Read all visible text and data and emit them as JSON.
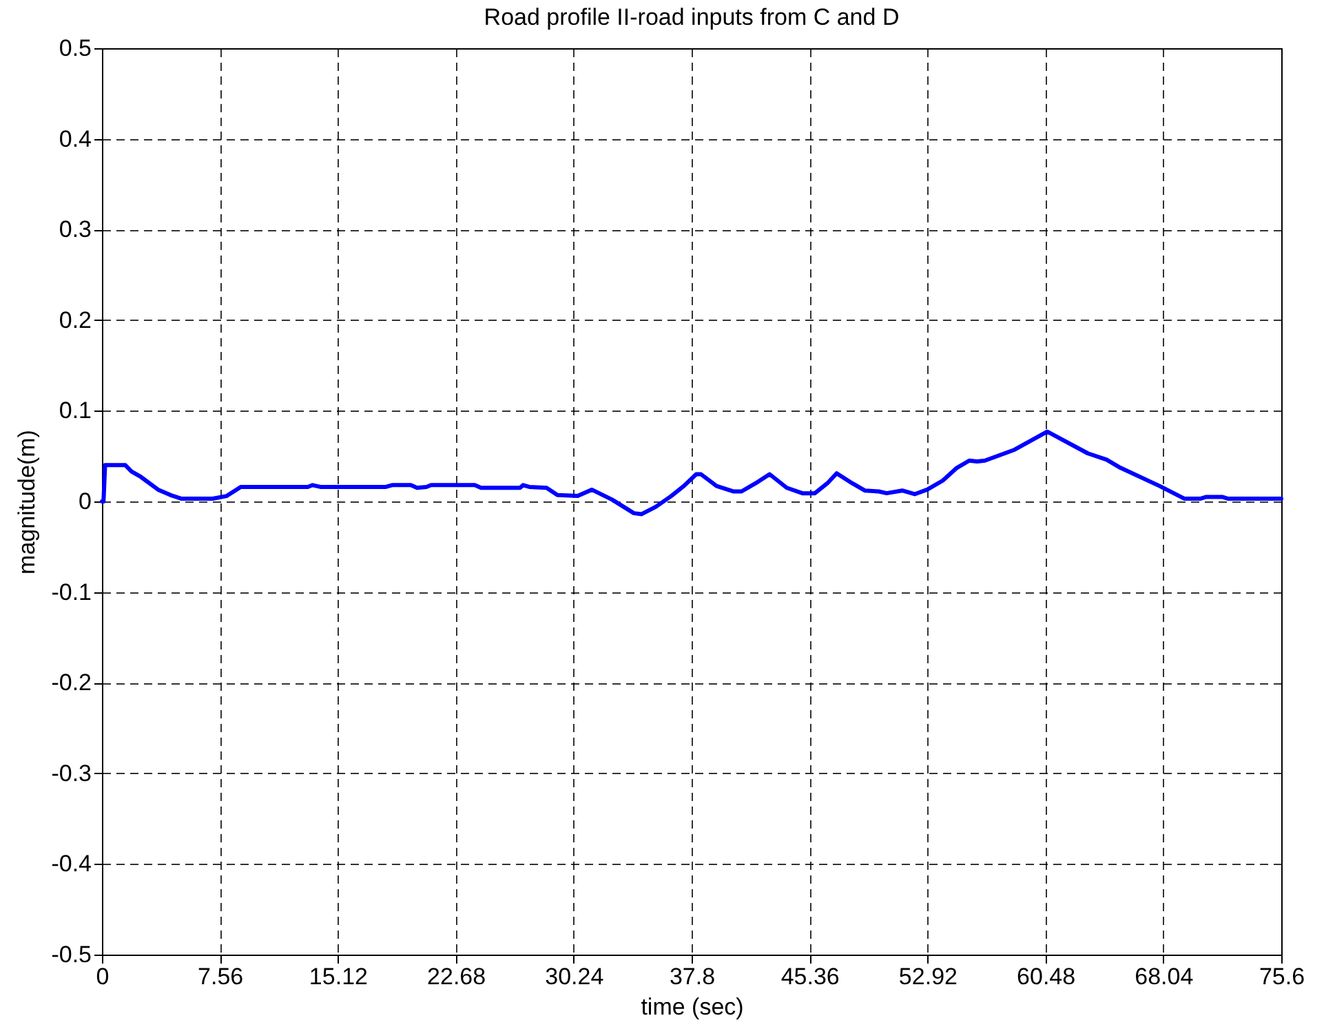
{
  "chart_data": {
    "type": "line",
    "title": "Road profile II-road inputs from C and D",
    "xlabel": "time (sec)",
    "ylabel": "magnitude(m)",
    "xlim": [
      0,
      75.6
    ],
    "xticks": [
      {
        "value": 0,
        "label": "0"
      },
      {
        "value": 7.56,
        "label": "7.56"
      },
      {
        "value": 15.12,
        "label": "15.12"
      },
      {
        "value": 22.68,
        "label": "22.68"
      },
      {
        "value": 30.24,
        "label": "30.24"
      },
      {
        "value": 37.8,
        "label": "37.8"
      },
      {
        "value": 45.36,
        "label": "45.36"
      },
      {
        "value": 52.92,
        "label": "52.92"
      },
      {
        "value": 60.48,
        "label": "60.48"
      },
      {
        "value": 68.04,
        "label": "68.04"
      },
      {
        "value": 75.6,
        "label": "75.6"
      }
    ],
    "ylim": [
      -0.5,
      0.5
    ],
    "yticks": [
      {
        "value": -0.5,
        "label": "-0.5"
      },
      {
        "value": -0.4,
        "label": "-0.4"
      },
      {
        "value": -0.3,
        "label": "-0.3"
      },
      {
        "value": -0.2,
        "label": "-0.2"
      },
      {
        "value": -0.1,
        "label": "-0.1"
      },
      {
        "value": 0,
        "label": "0"
      },
      {
        "value": 0.1,
        "label": "0.1"
      },
      {
        "value": 0.2,
        "label": "0.2"
      },
      {
        "value": 0.3,
        "label": "0.3"
      },
      {
        "value": 0.4,
        "label": "0.4"
      },
      {
        "value": 0.5,
        "label": "0.5"
      }
    ],
    "grid": true,
    "line_style": "solid",
    "series": [
      {
        "color": "#0000ff",
        "x": [
          0,
          0.1,
          0.2,
          0.4,
          1.5,
          1.9,
          2.5,
          3.6,
          4.4,
          5.1,
          7.1,
          8.0,
          8.9,
          13.2,
          13.5,
          14.0,
          18.2,
          18.6,
          19.8,
          20.2,
          20.8,
          21.1,
          23.9,
          24.3,
          26.8,
          27.0,
          27.4,
          28.5,
          29.2,
          30.5,
          31.4,
          32.7,
          34.1,
          34.6,
          35.5,
          36.5,
          37.3,
          38.1,
          38.4,
          39.4,
          40.5,
          41.0,
          41.9,
          42.8,
          43.9,
          44.9,
          45.7,
          46.5,
          47.1,
          48.1,
          48.9,
          49.8,
          50.3,
          51.3,
          52.1,
          52.9,
          53.9,
          54.8,
          55.6,
          56.1,
          56.6,
          58.5,
          60.6,
          63.2,
          64.4,
          65.3,
          67.8,
          69.4,
          70.4,
          70.8,
          71.8,
          72.2,
          75.6
        ],
        "values": [
          0,
          0,
          0.04,
          0.04,
          0.04,
          0.033,
          0.027,
          0.013,
          0.007,
          0.003,
          0.003,
          0.006,
          0.016,
          0.016,
          0.018,
          0.016,
          0.016,
          0.018,
          0.018,
          0.015,
          0.016,
          0.018,
          0.018,
          0.015,
          0.015,
          0.018,
          0.016,
          0.015,
          0.007,
          0.006,
          0.013,
          0.002,
          -0.013,
          -0.014,
          -0.006,
          0.006,
          0.017,
          0.03,
          0.03,
          0.017,
          0.011,
          0.011,
          0.02,
          0.03,
          0.015,
          0.009,
          0.009,
          0.02,
          0.031,
          0.02,
          0.012,
          0.011,
          0.009,
          0.012,
          0.008,
          0.013,
          0.023,
          0.037,
          0.045,
          0.044,
          0.045,
          0.057,
          0.077,
          0.053,
          0.046,
          0.037,
          0.017,
          0.003,
          0.003,
          0.005,
          0.005,
          0.003,
          0.003
        ]
      }
    ]
  }
}
